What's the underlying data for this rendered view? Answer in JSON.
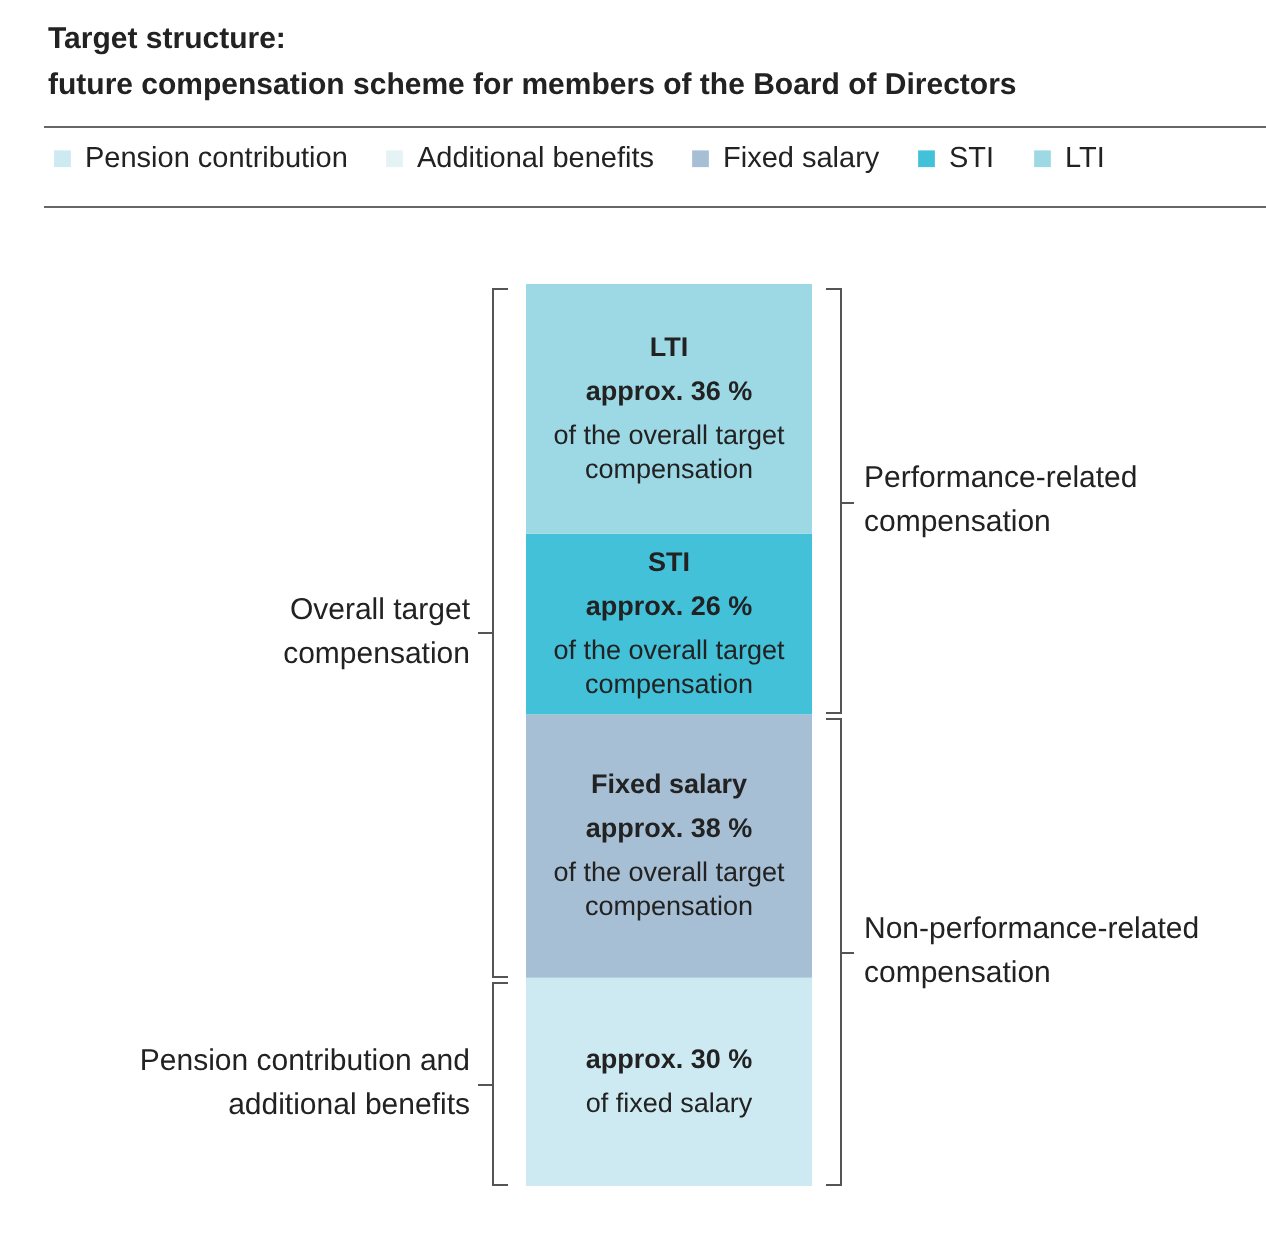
{
  "chart_data": {
    "type": "bar",
    "title": "Target structure:",
    "subtitle": "future compensation scheme for members of the Board of Directors",
    "categories": [
      null
    ],
    "stacked": true,
    "ylim": [
      0,
      130
    ],
    "legend": "top",
    "series": [
      {
        "name": "Pension contribution",
        "color": "#cde9f1",
        "values": [
          30
        ],
        "value_labels": [
          "approx. 30 %"
        ]
      },
      {
        "name": "Additional benefits",
        "color": "#e5f3f7",
        "values": [
          null
        ]
      },
      {
        "name": "Fixed salary",
        "color": "#a6bfd5",
        "values": [
          38
        ],
        "value_labels": [
          "approx. 38 %"
        ]
      },
      {
        "name": "STI",
        "color": "#42c1d8",
        "values": [
          26
        ],
        "value_labels": [
          "approx. 26 %"
        ]
      },
      {
        "name": "LTI",
        "color": "#9dd8e5",
        "values": [
          36
        ],
        "value_labels": [
          "approx. 36 %"
        ]
      }
    ],
    "annotations": [
      "Overall target compensation",
      "Performance-related compensation",
      "Non-performance-related compensation",
      "Pension contribution and additional benefits",
      "of fixed salary",
      "of the overall target compensation",
      "of the overall target compensation",
      "of the overall target compensation"
    ]
  }
}
